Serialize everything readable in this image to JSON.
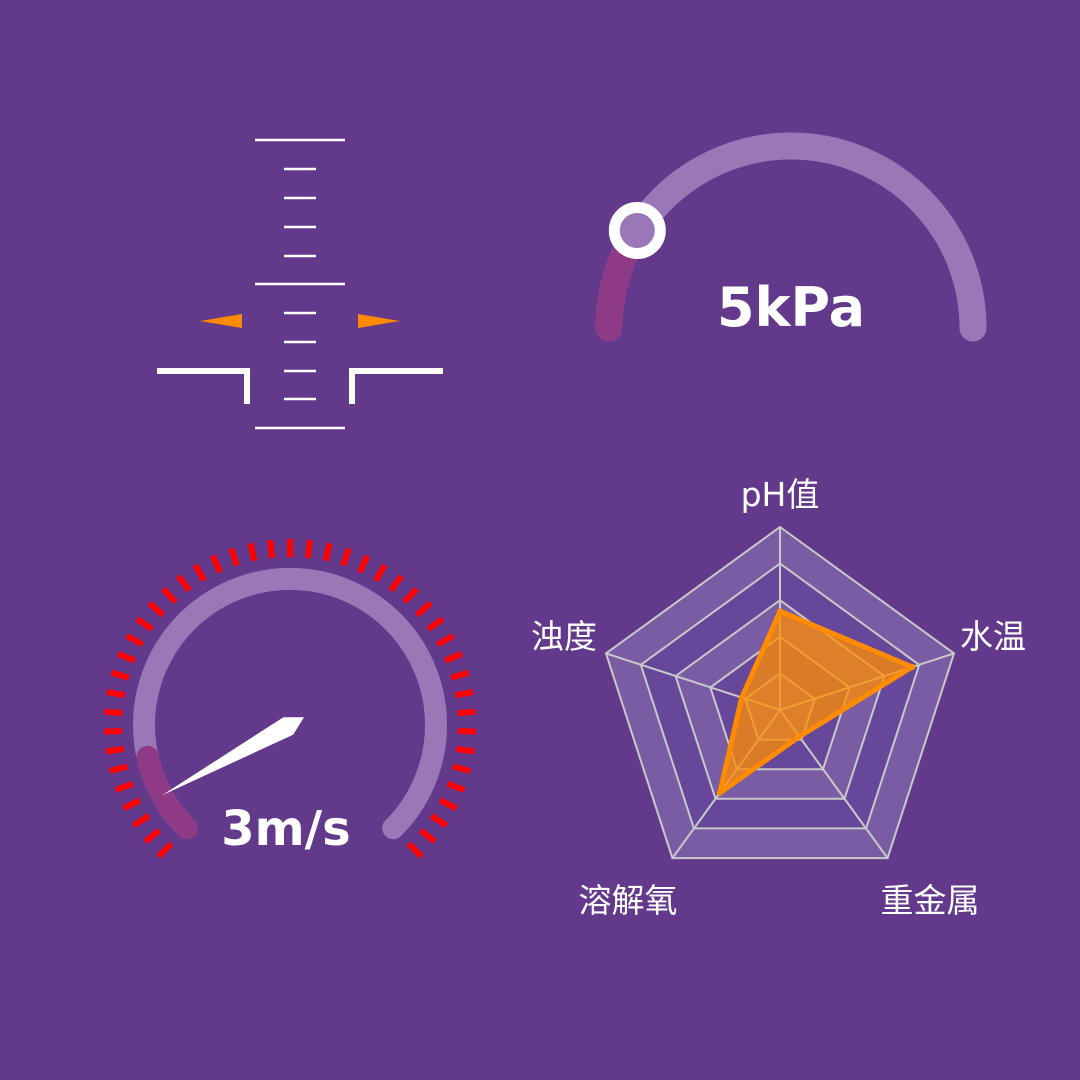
{
  "colors": {
    "background": "#63398c",
    "track": "#9a78b8",
    "progress": "#8e3a86",
    "accent_orange": "#ff8c00",
    "tick_red": "#ff0000",
    "white": "#ffffff"
  },
  "widgets": {
    "level_indicator": {
      "icons": {
        "left_marker": "left-pointing-triangle-icon",
        "right_marker": "right-pointing-triangle-icon"
      }
    },
    "pressure_gauge": {
      "value_text": "5kPa",
      "fraction": 0.18
    },
    "speed_gauge": {
      "value_text": "3m/s",
      "needle_fraction": 0.06
    }
  },
  "chart_data": [
    {
      "type": "radar",
      "title": "",
      "indicators": [
        "pH值",
        "水温",
        "重金属",
        "溶解氧",
        "浊度"
      ],
      "indicator_labels_shown": [
        "pH值",
        "水温",
        "重金属",
        "溶解氧",
        "浊度"
      ],
      "max": 5,
      "rings": 5,
      "series": [
        {
          "values": [
            2.7,
            3.8,
            0.9,
            2.8,
            1.1
          ]
        }
      ]
    }
  ]
}
